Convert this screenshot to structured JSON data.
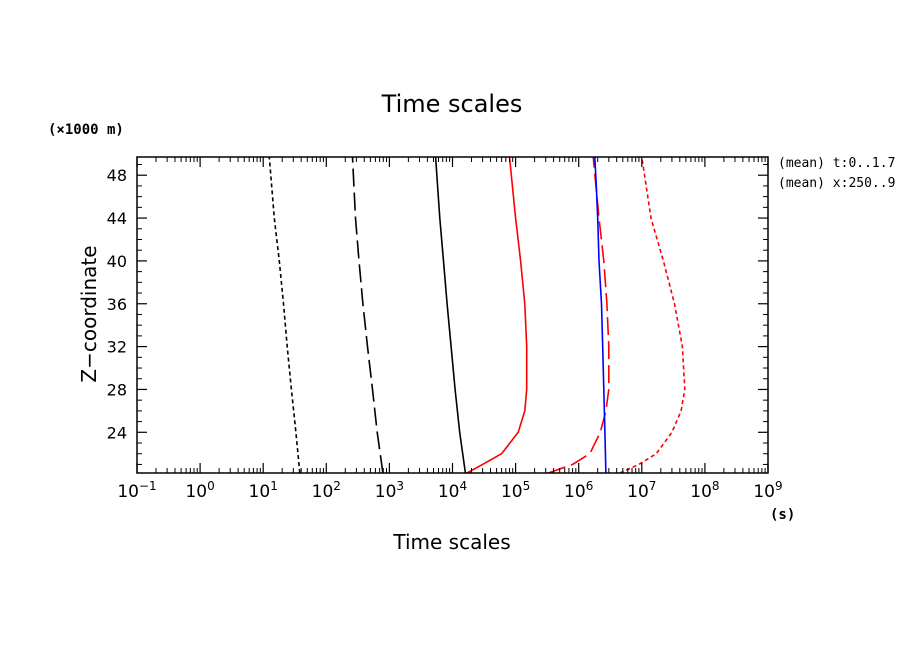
{
  "chart_data": {
    "type": "line",
    "title": "Time scales",
    "xlabel": "Time scales",
    "ylabel": "Z−coordinate",
    "x_unit": "(s)",
    "y_unit": "(×1000 m)",
    "x_scale": "log",
    "xlim": [
      0.1,
      1000000000
    ],
    "ylim": [
      20.2,
      49.7
    ],
    "x_ticks": [
      {
        "value": 0.1,
        "base": "10",
        "exp": "−1"
      },
      {
        "value": 1,
        "base": "10",
        "exp": "0"
      },
      {
        "value": 10,
        "base": "10",
        "exp": "1"
      },
      {
        "value": 100,
        "base": "10",
        "exp": "2"
      },
      {
        "value": 1000,
        "base": "10",
        "exp": "3"
      },
      {
        "value": 10000,
        "base": "10",
        "exp": "4"
      },
      {
        "value": 100000,
        "base": "10",
        "exp": "5"
      },
      {
        "value": 1000000,
        "base": "10",
        "exp": "6"
      },
      {
        "value": 10000000,
        "base": "10",
        "exp": "7"
      },
      {
        "value": 100000000,
        "base": "10",
        "exp": "8"
      },
      {
        "value": 1000000000,
        "base": "10",
        "exp": "9"
      }
    ],
    "y_ticks": [
      24,
      28,
      32,
      36,
      40,
      44,
      48
    ],
    "annotations": [
      "(mean) t:0..1.7",
      "(mean) x:250..9"
    ],
    "grid": false,
    "series": [
      {
        "color": "#000000",
        "dash": "short",
        "x": [
          38,
          33,
          28,
          24,
          21,
          18,
          15,
          12.5
        ],
        "y": [
          20.2,
          24,
          28,
          32,
          36,
          40,
          44,
          49.7
        ]
      },
      {
        "color": "#000000",
        "dash": "long",
        "x": [
          790,
          640,
          540,
          450,
          380,
          330,
          290,
          260
        ],
        "y": [
          20.2,
          24,
          28,
          32,
          36,
          40,
          44,
          49.7
        ]
      },
      {
        "color": "#000000",
        "dash": "solid",
        "x": [
          16000,
          13000,
          11000,
          9500,
          8200,
          7200,
          6300,
          5400
        ],
        "y": [
          20.2,
          24,
          28,
          32,
          36,
          40,
          44,
          49.7
        ]
      },
      {
        "color": "#ff0000",
        "dash": "solid",
        "x": [
          17000,
          30000,
          60000,
          110000,
          140000,
          150000,
          150000,
          140000,
          120000,
          100000,
          80000
        ],
        "y": [
          20.2,
          21,
          22,
          24,
          26,
          28,
          32,
          36,
          40,
          44,
          49.7
        ]
      },
      {
        "color": "#ff0000",
        "dash": "long",
        "x": [
          330000,
          800000,
          1500000,
          2200000,
          2700000,
          3000000,
          3000000,
          2800000,
          2500000,
          2100000,
          1700000
        ],
        "y": [
          20.2,
          21,
          22,
          24,
          26,
          28,
          32,
          36,
          40,
          44,
          49.7
        ]
      },
      {
        "color": "#0000ff",
        "dash": "solid",
        "x": [
          2700000,
          2600000,
          2500000,
          2400000,
          2300000,
          2100000,
          2000000,
          1900000,
          1800000
        ],
        "y": [
          20.2,
          24,
          28,
          32,
          36,
          40,
          44,
          47,
          49.7
        ]
      },
      {
        "color": "#ff0000",
        "dash": "short",
        "x": [
          4500000,
          9000000,
          17000000,
          30000000,
          42000000,
          48000000,
          44000000,
          33000000,
          22000000,
          14000000,
          10000000
        ],
        "y": [
          20.2,
          21,
          22,
          24,
          26,
          28,
          32,
          36,
          40,
          44,
          49.7
        ]
      }
    ]
  }
}
